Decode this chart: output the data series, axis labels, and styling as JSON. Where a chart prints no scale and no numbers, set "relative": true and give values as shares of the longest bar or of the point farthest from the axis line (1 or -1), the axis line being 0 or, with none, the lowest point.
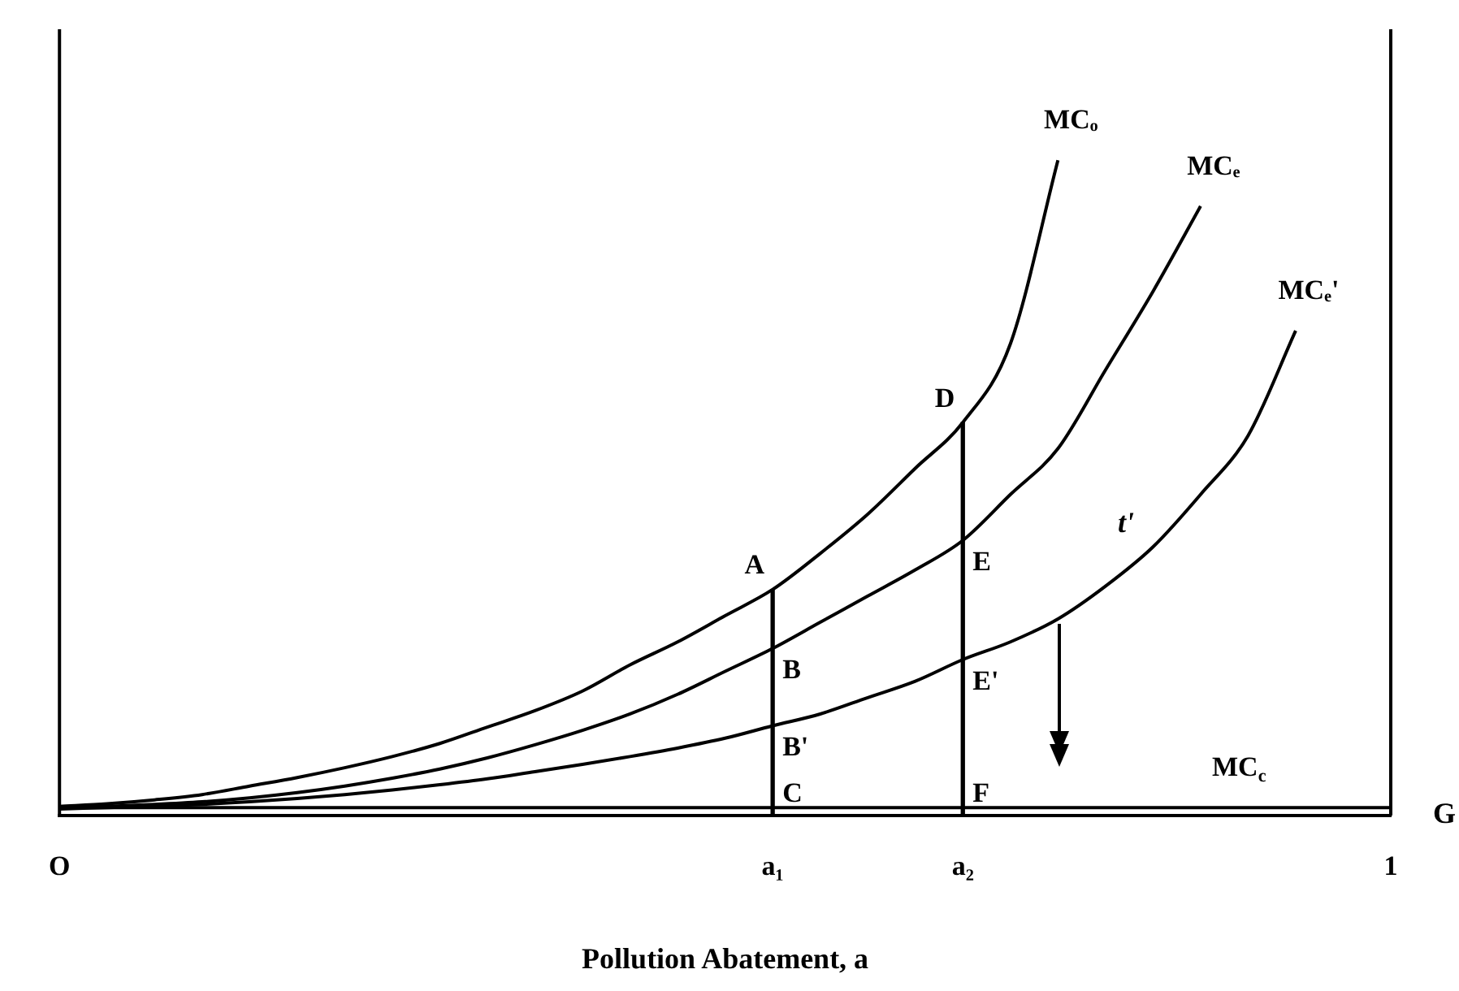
{
  "chart_data": {
    "type": "line",
    "relative": true,
    "marker": "none",
    "legend": false,
    "tick_labels": "x",
    "xlabel": "Pollution Abatement, a",
    "categories": [
      "O",
      null,
      null,
      null,
      null,
      null,
      null,
      null,
      null,
      null,
      null,
      null,
      null,
      null,
      null,
      "a₁",
      null,
      null,
      null,
      "a₂",
      null,
      null,
      null,
      null,
      null,
      null,
      null,
      null,
      "1"
    ],
    "series": [
      {
        "name": "MCₒ",
        "color": "#000000",
        "values": [
          0.014,
          0.018,
          0.024,
          0.032,
          0.045,
          0.058,
          0.073,
          0.09,
          0.11,
          0.135,
          0.16,
          0.19,
          0.23,
          0.265,
          0.305,
          0.345,
          0.4,
          0.46,
          0.53,
          0.6,
          0.72,
          1,
          null,
          null,
          null,
          null,
          null,
          null,
          null
        ]
      },
      {
        "name": "MCₑ",
        "color": "#000000",
        "values": [
          0.012,
          0.014,
          0.017,
          0.021,
          0.027,
          0.035,
          0.045,
          0.057,
          0.071,
          0.088,
          0.108,
          0.13,
          0.155,
          0.185,
          0.22,
          0.255,
          0.295,
          0.335,
          0.375,
          0.42,
          0.49,
          0.56,
          0.68,
          0.8,
          0.93,
          null,
          null,
          null,
          null
        ]
      },
      {
        "name": "MCₑ'",
        "color": "#000000",
        "values": [
          0.01,
          0.012,
          0.014,
          0.017,
          0.021,
          0.026,
          0.032,
          0.039,
          0.047,
          0.056,
          0.067,
          0.078,
          0.09,
          0.103,
          0.118,
          0.137,
          0.155,
          0.18,
          0.205,
          0.238,
          0.265,
          0.3,
          0.35,
          0.41,
          0.49,
          0.58,
          0.74,
          null,
          null
        ]
      },
      {
        "name": "MC$_{c}$",
        "color": "#000000",
        "values": [
          0.012,
          0.012,
          0.012,
          0.012,
          0.012,
          0.012,
          0.012,
          0.012,
          0.012,
          0.012,
          0.012,
          0.012,
          0.012,
          0.012,
          0.012,
          0.012,
          0.012,
          0.012,
          0.012,
          0.012,
          0.012,
          0.012,
          0.012,
          0.012,
          0.012,
          0.012,
          0.012,
          0.012,
          0.012
        ]
      },
      {
        "type": "bar",
        "color": "#000000",
        "values": [
          null,
          null,
          null,
          null,
          null,
          null,
          null,
          null,
          null,
          null,
          null,
          null,
          null,
          null,
          null,
          0.345,
          null,
          null,
          null,
          0.6,
          null,
          null,
          null,
          null,
          null,
          null,
          null,
          null,
          null
        ]
      }
    ],
    "annotations": [
      {
        "text": "A",
        "x": "a₁",
        "y": 0.345
      },
      {
        "text": "B",
        "x": "a₁",
        "y": 0.255
      },
      {
        "text": "B'",
        "x": "a₁",
        "y": 0.137
      },
      {
        "text": "C",
        "x": "a₁",
        "y": 0
      },
      {
        "text": "D",
        "x": "a₂",
        "y": 0.6
      },
      {
        "text": "E",
        "x": "a₂",
        "y": 0.42
      },
      {
        "text": "E'",
        "x": "a₂",
        "y": 0.238
      },
      {
        "text": "F",
        "x": "a₂",
        "y": 0
      },
      "t'",
      "G"
    ]
  }
}
